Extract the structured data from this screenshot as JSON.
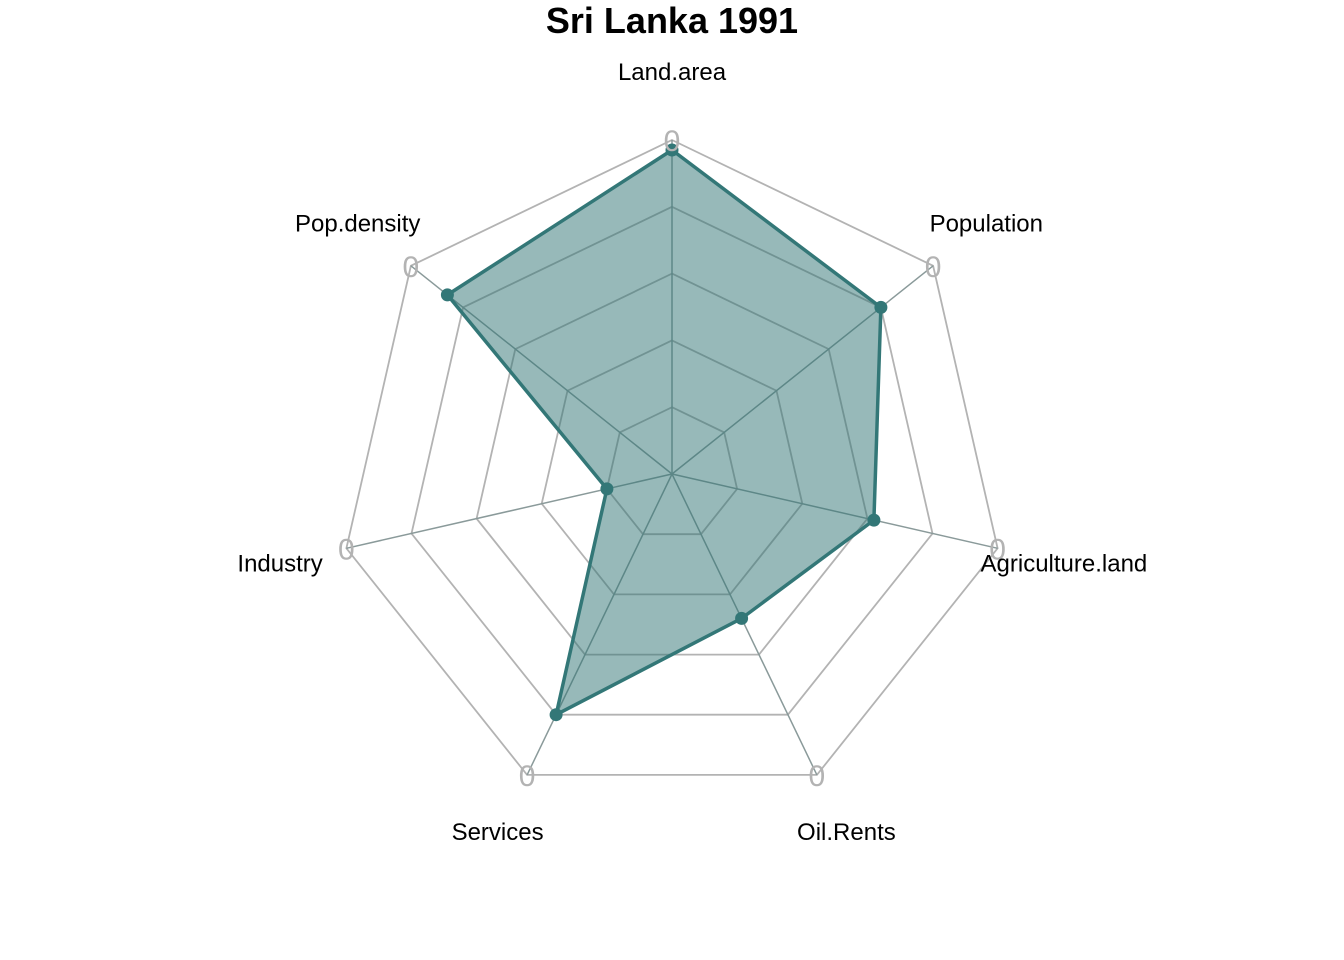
{
  "chart_data": {
    "type": "radar",
    "title": "Sri Lanka 1991",
    "axes": [
      "Land.area",
      "Population",
      "Agriculture.land",
      "Oil.Rents",
      "Services",
      "Industry",
      "Pop.density"
    ],
    "values": [
      0.97,
      0.8,
      0.62,
      0.48,
      0.8,
      0.2,
      0.86
    ],
    "ring_count": 5,
    "max_labels": [
      "0",
      "0",
      "0",
      "0",
      "0",
      "0",
      "0"
    ],
    "colors": {
      "fill": "#2f7373",
      "fill_opacity": 0.5,
      "line": "#337777",
      "grid": "#b3b3b3",
      "spoke": "#8a9a9a"
    }
  }
}
